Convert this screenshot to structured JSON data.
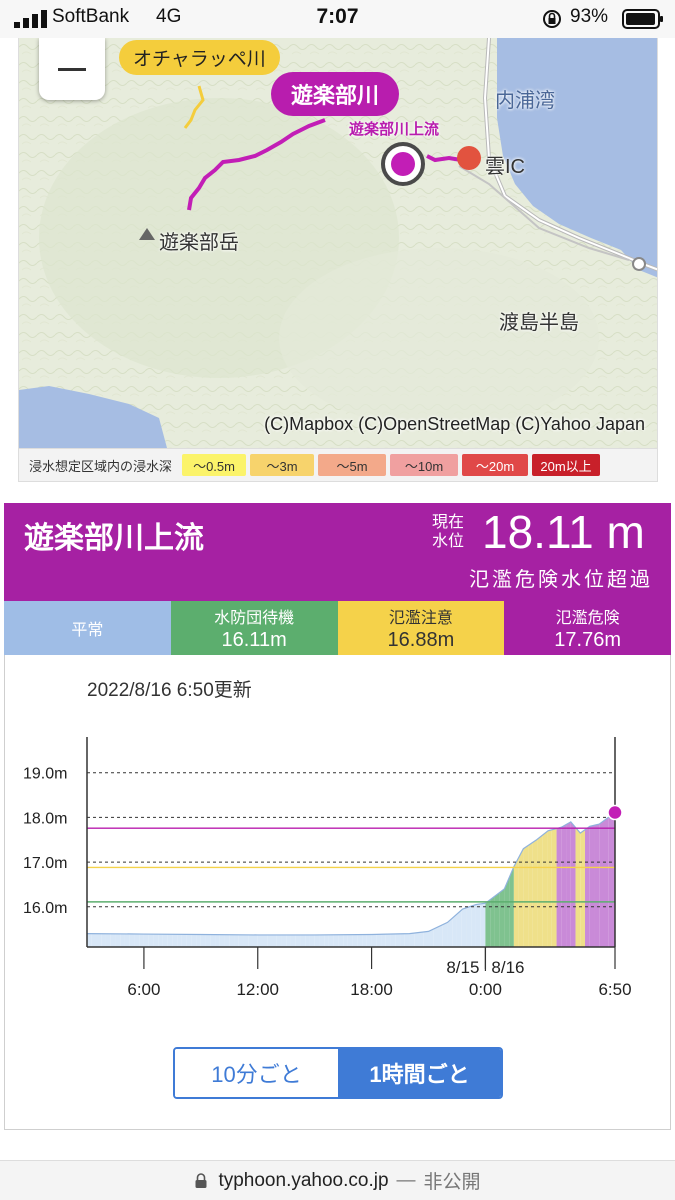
{
  "status_bar": {
    "carrier": "SoftBank",
    "network": "4G",
    "time": "7:07",
    "battery": "93%"
  },
  "map": {
    "zoom_out_icon": "minus-icon",
    "labels": {
      "bay": "内浦湾",
      "peak": "遊楽部岳",
      "peninsula": "渡島半島",
      "ic": "雲IC"
    },
    "river_tags": {
      "other_river": "オチャラッペ川",
      "selected_river": "遊楽部川",
      "selected_station": "遊楽部川上流"
    },
    "copyright": "(C)Mapbox (C)OpenStreetMap (C)Yahoo Japan"
  },
  "legend": {
    "title": "浸水想定区域内の浸水深",
    "items": [
      {
        "label": "〜0.5m",
        "color": "#fbf36a",
        "text_color": "#333"
      },
      {
        "label": "〜3m",
        "color": "#f7d36c",
        "text_color": "#333"
      },
      {
        "label": "〜5m",
        "color": "#f3a98a",
        "text_color": "#333"
      },
      {
        "label": "〜10m",
        "color": "#f0a0a0",
        "text_color": "#333"
      },
      {
        "label": "〜20m",
        "color": "#e04848",
        "text_color": "#fff"
      },
      {
        "label": "20m以上",
        "color": "#c8202a",
        "text_color": "#fff"
      }
    ]
  },
  "station": {
    "name": "遊楽部川上流",
    "current_label": "現在水位",
    "current_value": "18.11 m",
    "status": "氾濫危険水位超過",
    "color": "#a621a3"
  },
  "thresholds": [
    {
      "label": "平常",
      "value": "",
      "bg": "#9fbde6"
    },
    {
      "label": "水防団待機",
      "value": "16.11m",
      "bg": "#5cae6e"
    },
    {
      "label": "氾濫注意",
      "value": "16.88m",
      "bg": "#f5d24a"
    },
    {
      "label": "氾濫危険",
      "value": "17.76m",
      "bg": "#a621a3"
    }
  ],
  "chart": {
    "updated": "2022/8/16 6:50更新",
    "toggle": {
      "option_10min": "10分ごと",
      "option_1h": "1時間ごと",
      "selected": "1時間ごと"
    }
  },
  "chart_data": {
    "type": "area",
    "title": "",
    "xlabel": "",
    "ylabel": "",
    "ylim": [
      15.1,
      19.8
    ],
    "y_ticks": [
      16.0,
      17.0,
      18.0,
      19.0
    ],
    "y_tick_labels": [
      "16.0m",
      "17.0m",
      "18.0m",
      "19.0m"
    ],
    "x_ticks": [
      {
        "x_hours": 6,
        "label": "6:00"
      },
      {
        "x_hours": 12,
        "label": "12:00"
      },
      {
        "x_hours": 18,
        "label": "18:00"
      },
      {
        "x_hours": 24,
        "label": "0:00"
      },
      {
        "x_hours": 30.83,
        "label": "6:50"
      }
    ],
    "date_labels": [
      {
        "x_hours": 24,
        "left": "8/15",
        "right": "8/16"
      }
    ],
    "x_range_hours": [
      3.0,
      30.83
    ],
    "thresholds": [
      {
        "name": "水防団待機",
        "value": 16.11,
        "color": "#5cae6e"
      },
      {
        "name": "氾濫注意",
        "value": 16.88,
        "color": "#f5d24a"
      },
      {
        "name": "氾濫危険",
        "value": 17.76,
        "color": "#b81dae"
      }
    ],
    "series": [
      {
        "points": [
          [
            3.0,
            15.4
          ],
          [
            6.0,
            15.39
          ],
          [
            9.0,
            15.38
          ],
          [
            12.0,
            15.37
          ],
          [
            15.0,
            15.37
          ],
          [
            18.0,
            15.38
          ],
          [
            20.0,
            15.4
          ],
          [
            21.0,
            15.45
          ],
          [
            22.0,
            15.65
          ],
          [
            22.8,
            15.95
          ],
          [
            23.5,
            16.05
          ],
          [
            24.0,
            16.08
          ],
          [
            25.0,
            16.4
          ],
          [
            25.5,
            16.9
          ],
          [
            26.0,
            17.3
          ],
          [
            26.7,
            17.5
          ],
          [
            27.3,
            17.7
          ],
          [
            28.0,
            17.78
          ],
          [
            28.5,
            17.9
          ],
          [
            29.0,
            17.65
          ],
          [
            29.5,
            17.8
          ],
          [
            30.0,
            17.85
          ],
          [
            30.83,
            18.11
          ]
        ]
      }
    ],
    "current_point": {
      "x_hours": 30.83,
      "value": 18.11
    }
  }
}
